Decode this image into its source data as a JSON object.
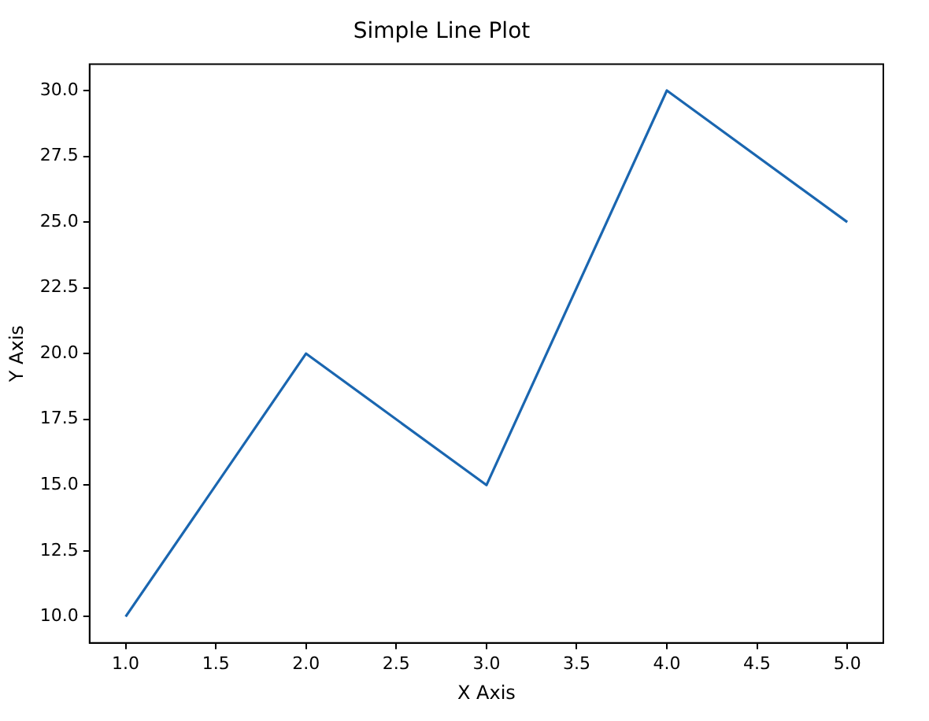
{
  "chart_data": {
    "type": "line",
    "title": "Simple Line Plot",
    "xlabel": "X Axis",
    "ylabel": "Y Axis",
    "x": [
      1,
      2,
      3,
      4,
      5
    ],
    "series": [
      {
        "color": "#1a66b0",
        "values": [
          10,
          20,
          15,
          30,
          25
        ]
      }
    ],
    "xlim": [
      0.8,
      5.2
    ],
    "ylim": [
      9,
      31
    ],
    "xticks": [
      {
        "value": 1,
        "label": "1.0"
      },
      {
        "value": 1.5,
        "label": "1.5"
      },
      {
        "value": 2,
        "label": "2.0"
      },
      {
        "value": 2.5,
        "label": "2.5"
      },
      {
        "value": 3,
        "label": "3.0"
      },
      {
        "value": 3.5,
        "label": "3.5"
      },
      {
        "value": 4,
        "label": "4.0"
      },
      {
        "value": 4.5,
        "label": "4.5"
      },
      {
        "value": 5,
        "label": "5.0"
      }
    ],
    "yticks": [
      {
        "value": 10,
        "label": "10.0"
      },
      {
        "value": 12.5,
        "label": "12.5"
      },
      {
        "value": 15,
        "label": "15.0"
      },
      {
        "value": 17.5,
        "label": "17.5"
      },
      {
        "value": 20,
        "label": "20.0"
      },
      {
        "value": 22.5,
        "label": "22.5"
      },
      {
        "value": 25,
        "label": "25.0"
      },
      {
        "value": 27.5,
        "label": "27.5"
      },
      {
        "value": 30,
        "label": "30.0"
      }
    ],
    "grid": false,
    "legend": false,
    "marker": "none",
    "line_style": "solid"
  }
}
